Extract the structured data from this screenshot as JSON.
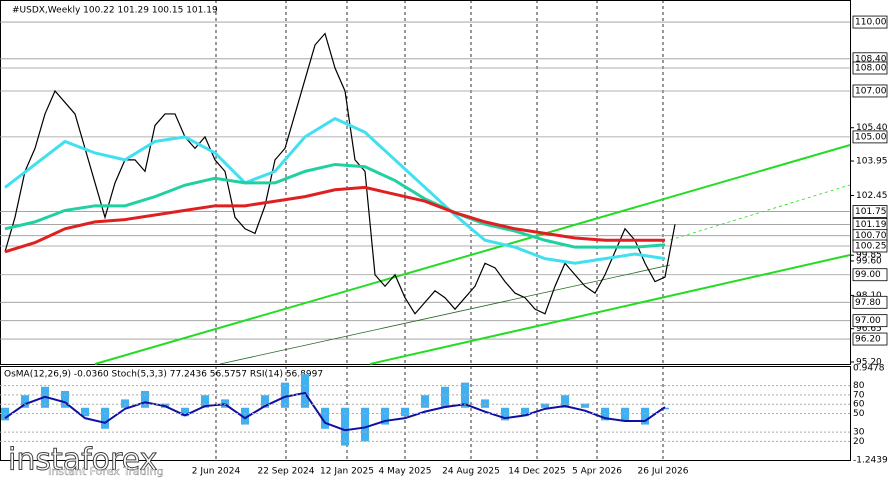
{
  "chart_data": {
    "type": "line",
    "title": "#USDX,Weekly  100.22 101.29 100.15 101.19",
    "xlim": [
      -0.5,
      84.5
    ],
    "ylim": [
      95.07,
      110.96
    ],
    "xticks": [
      {
        "value": 21.1,
        "label": "2 Jun 2024"
      },
      {
        "value": 28.1,
        "label": "22 Sep 2024"
      },
      {
        "value": 34.2,
        "label": "12 Jan 2025"
      },
      {
        "value": 40,
        "label": "4 May 2025"
      },
      {
        "value": 46.6,
        "label": "24 Aug 2025"
      },
      {
        "value": 53.2,
        "label": "14 Dec 2025"
      },
      {
        "value": 59.2,
        "label": "5 Apr 2026"
      },
      {
        "value": 65.8,
        "label": "26 Jul 2026"
      }
    ],
    "yticks": [
      {
        "value": 105.4,
        "label": "105.40"
      },
      {
        "value": 103.95,
        "label": "103.95"
      },
      {
        "value": 102.45,
        "label": "102.45"
      },
      {
        "value": 99.85,
        "label": "99.85"
      },
      {
        "value": 99.6,
        "label": "99.60"
      },
      {
        "value": 98.1,
        "label": "98.10"
      },
      {
        "value": 96.65,
        "label": "96.65"
      },
      {
        "value": 95.2,
        "label": "95.20"
      }
    ],
    "levels": [
      {
        "value": 110,
        "label": "110.00"
      },
      {
        "value": 108.4,
        "label": "108.40"
      },
      {
        "value": 108,
        "label": "108.00"
      },
      {
        "value": 107,
        "label": "107.00"
      },
      {
        "value": 105,
        "label": "105.00"
      },
      {
        "value": 101.75,
        "label": "101.75"
      },
      {
        "value": 101.19,
        "label": "101.19"
      },
      {
        "value": 100.7,
        "label": "100.70"
      },
      {
        "value": 100.25,
        "label": "100.25"
      },
      {
        "value": 99,
        "label": "99.00"
      },
      {
        "value": 97.8,
        "label": "97.80"
      },
      {
        "value": 97,
        "label": "97.00"
      },
      {
        "value": 96.2,
        "label": "96.20"
      }
    ],
    "series": [
      {
        "color": "#000000",
        "x": [
          0,
          1,
          2,
          3,
          4,
          5,
          6,
          7,
          8,
          9,
          10,
          11,
          12,
          13,
          14,
          15,
          16,
          17,
          18,
          19,
          20,
          21,
          22,
          23,
          24,
          25,
          26,
          27,
          28,
          29,
          30,
          31,
          32,
          33,
          34,
          35,
          36,
          37,
          38,
          39,
          40,
          41,
          42,
          43,
          44,
          45,
          46,
          47,
          48,
          49,
          50,
          51,
          52,
          53,
          54,
          55,
          56,
          57,
          58,
          59,
          60,
          61,
          62,
          63,
          64,
          65,
          66,
          67
        ],
        "values": [
          100,
          101.5,
          103.5,
          104.5,
          106,
          107,
          106.5,
          106,
          104.5,
          103,
          101.5,
          103,
          104,
          104,
          103.5,
          105.5,
          106,
          106,
          105,
          104.5,
          105,
          104,
          103.5,
          101.5,
          101,
          100.8,
          102,
          104,
          104.5,
          106,
          107.5,
          109,
          109.5,
          108,
          107,
          104,
          103.5,
          99,
          98.5,
          99,
          98,
          97.3,
          97.8,
          98.3,
          98,
          97.5,
          98,
          98.5,
          99.5,
          99.3,
          98.7,
          98.2,
          98,
          97.5,
          97.3,
          98.5,
          99.5,
          99,
          98.5,
          98.2,
          99,
          100,
          101,
          100.5,
          99.5,
          98.7,
          98.9,
          101.19
        ]
      },
      {
        "color": "#40e0f0",
        "x": [
          0,
          3,
          6,
          9,
          12,
          15,
          18,
          21,
          24,
          27,
          30,
          33,
          36,
          39,
          42,
          45,
          48,
          51,
          54,
          57,
          60,
          63,
          66
        ],
        "values": [
          102.8,
          103.8,
          104.8,
          104.3,
          104,
          104.8,
          105,
          104.3,
          103,
          103.5,
          105,
          105.8,
          105.2,
          104,
          102.8,
          101.6,
          100.5,
          100.2,
          99.7,
          99.5,
          99.7,
          99.9,
          99.7
        ]
      },
      {
        "color": "#20d0a0",
        "x": [
          0,
          3,
          6,
          9,
          12,
          15,
          18,
          21,
          24,
          27,
          30,
          33,
          36,
          39,
          42,
          45,
          48,
          51,
          54,
          57,
          60,
          63,
          66
        ],
        "values": [
          101,
          101.3,
          101.8,
          102,
          102,
          102.4,
          102.9,
          103.2,
          103,
          103,
          103.5,
          103.8,
          103.7,
          103.1,
          102.3,
          101.7,
          101.2,
          100.9,
          100.5,
          100.2,
          100.2,
          100.2,
          100.3
        ]
      },
      {
        "color": "#e02020",
        "x": [
          0,
          3,
          6,
          9,
          12,
          15,
          18,
          21,
          24,
          27,
          30,
          33,
          36,
          39,
          42,
          45,
          48,
          51,
          54,
          57,
          60,
          63,
          66
        ],
        "values": [
          100,
          100.4,
          101,
          101.3,
          101.4,
          101.6,
          101.8,
          102,
          102,
          102.2,
          102.4,
          102.7,
          102.8,
          102.5,
          102.2,
          101.7,
          101.3,
          101,
          100.8,
          100.6,
          100.5,
          100.5,
          100.5
        ]
      }
    ],
    "indicator": {
      "label": "OsMA(12,26,9) -0.0360  Stoch(5,3,3) 77.2436 56.5757  RSI(14) 56.8997",
      "x": [
        0,
        2,
        4,
        6,
        8,
        10,
        12,
        14,
        16,
        18,
        20,
        22,
        24,
        26,
        28,
        30,
        32,
        34,
        36,
        38,
        40,
        42,
        44,
        46,
        48,
        50,
        52,
        54,
        56,
        58,
        60,
        62,
        64,
        66
      ],
      "osma": [
        -0.3,
        0.3,
        0.5,
        0.4,
        -0.2,
        -0.5,
        0.2,
        0.4,
        0.1,
        -0.2,
        0.3,
        0.2,
        -0.4,
        0.3,
        0.6,
        0.8,
        -0.5,
        -0.9,
        -0.8,
        -0.4,
        -0.2,
        0.3,
        0.5,
        0.6,
        0.2,
        -0.3,
        -0.2,
        0.1,
        0.3,
        0.1,
        -0.3,
        -0.3,
        -0.4,
        -0.036
      ],
      "osma_color": "#40b0f0",
      "osmalim": [
        -1.2439,
        0.9478
      ],
      "osmaticks": [
        {
          "value": 0.9478,
          "label": "0.9478"
        },
        {
          "value": -1.2439,
          "label": "-1.2439"
        }
      ],
      "rsi": [
        45,
        60,
        68,
        62,
        45,
        40,
        55,
        62,
        58,
        48,
        58,
        60,
        45,
        58,
        68,
        72,
        40,
        32,
        35,
        42,
        45,
        52,
        57,
        60,
        52,
        45,
        48,
        55,
        58,
        53,
        45,
        42,
        42,
        56.8997
      ],
      "rsi_color": "#1010a0",
      "rsilim": [
        0,
        100
      ],
      "rsiticks": [
        80,
        70,
        60,
        50,
        30,
        20
      ]
    },
    "logo": "instaforex",
    "tagline": "Instant Forex Trading"
  }
}
